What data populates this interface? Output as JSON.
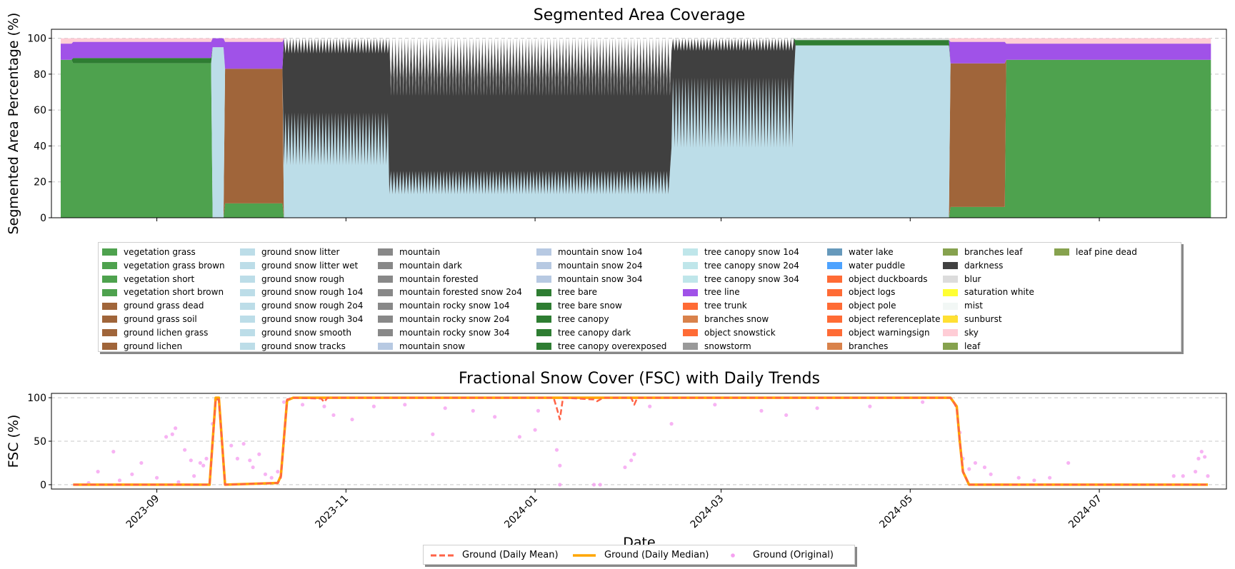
{
  "chart_data": [
    {
      "type": "area",
      "title": "Segmented Area Coverage",
      "xlabel": "",
      "ylabel": "Segmented Area Percentage (%)",
      "ylim": [
        0,
        105
      ],
      "yticks": [
        "0",
        "20",
        "40",
        "60",
        "80",
        "100"
      ],
      "grid": "y dashed",
      "x_range": [
        "2023-08-01",
        "2024-08-06"
      ],
      "stacking_order_bottom_to_top": [
        "vegetation grass",
        "ground grass dead",
        "ground snow litter",
        "darkness",
        "mountain",
        "tree canopy",
        "tree line",
        "blur",
        "sky"
      ],
      "phases": [
        {
          "from": "2023-08-05",
          "to": "2023-09-19",
          "dominant": "vegetation grass",
          "composition": {
            "vegetation grass": 86,
            "tree canopy": 3,
            "tree line": 9,
            "sky": 2
          }
        },
        {
          "from": "2023-09-19",
          "to": "2023-09-23",
          "dominant": "ground snow litter",
          "composition": {
            "ground snow litter": 95,
            "tree line": 5
          }
        },
        {
          "from": "2023-09-23",
          "to": "2023-10-12",
          "dominant": "ground grass dead",
          "composition": {
            "ground grass dead": 75,
            "vegetation grass": 8,
            "tree line": 15,
            "sky": 2
          }
        },
        {
          "from": "2023-10-12",
          "to": "2023-11-15",
          "dominant": "ground snow litter",
          "composition": {
            "ground snow litter": 45,
            "darkness": 55
          }
        },
        {
          "from": "2023-11-15",
          "to": "2024-02-14",
          "dominant": "darkness",
          "composition": {
            "darkness": 70,
            "ground snow litter": 20,
            "mountain": 10
          }
        },
        {
          "from": "2024-02-14",
          "to": "2024-03-25",
          "dominant": "ground snow litter",
          "composition": {
            "ground snow litter": 60,
            "darkness": 40
          }
        },
        {
          "from": "2024-03-25",
          "to": "2024-05-14",
          "dominant": "ground snow litter",
          "composition": {
            "ground snow litter": 96,
            "tree canopy": 3,
            "blur": 1
          }
        },
        {
          "from": "2024-05-14",
          "to": "2024-06-01",
          "dominant": "ground grass dead",
          "composition": {
            "ground grass dead": 80,
            "tree line": 12,
            "vegetation grass": 6,
            "sky": 2
          }
        },
        {
          "from": "2024-06-01",
          "to": "2024-08-06",
          "dominant": "vegetation grass",
          "composition": {
            "vegetation grass": 88,
            "tree line": 9,
            "sky": 3
          }
        }
      ],
      "legend": [
        {
          "label": "vegetation grass",
          "color": "#4ea24e"
        },
        {
          "label": "vegetation grass brown",
          "color": "#4ea24e"
        },
        {
          "label": "vegetation short",
          "color": "#4ea24e"
        },
        {
          "label": "vegetation short brown",
          "color": "#4ea24e"
        },
        {
          "label": "ground grass dead",
          "color": "#a0653a"
        },
        {
          "label": "ground grass soil",
          "color": "#a0653a"
        },
        {
          "label": "ground lichen grass",
          "color": "#a0653a"
        },
        {
          "label": "ground lichen",
          "color": "#a0653a"
        },
        {
          "label": "ground snow litter",
          "color": "#bcdde8"
        },
        {
          "label": "ground snow litter wet",
          "color": "#bcdde8"
        },
        {
          "label": "ground snow rough",
          "color": "#bcdde8"
        },
        {
          "label": "ground snow rough 1o4",
          "color": "#bcdde8"
        },
        {
          "label": "ground snow rough 2o4",
          "color": "#bcdde8"
        },
        {
          "label": "ground snow rough 3o4",
          "color": "#bcdde8"
        },
        {
          "label": "ground snow smooth",
          "color": "#bcdde8"
        },
        {
          "label": "ground snow tracks",
          "color": "#bcdde8"
        },
        {
          "label": "mountain",
          "color": "#888888"
        },
        {
          "label": "mountain dark",
          "color": "#888888"
        },
        {
          "label": "mountain forested",
          "color": "#888888"
        },
        {
          "label": "mountain forested snow 2o4",
          "color": "#888888"
        },
        {
          "label": "mountain rocky snow 1o4",
          "color": "#888888"
        },
        {
          "label": "mountain rocky snow 2o4",
          "color": "#888888"
        },
        {
          "label": "mountain rocky snow 3o4",
          "color": "#888888"
        },
        {
          "label": "mountain snow",
          "color": "#b7c9e2"
        },
        {
          "label": "mountain snow 1o4",
          "color": "#b7c9e2"
        },
        {
          "label": "mountain snow 2o4",
          "color": "#b7c9e2"
        },
        {
          "label": "mountain snow 3o4",
          "color": "#b7c9e2"
        },
        {
          "label": "tree bare",
          "color": "#2e7d32"
        },
        {
          "label": "tree bare snow",
          "color": "#2e7d32"
        },
        {
          "label": "tree canopy",
          "color": "#2e7d32"
        },
        {
          "label": "tree canopy dark",
          "color": "#2e7d32"
        },
        {
          "label": "tree canopy overexposed",
          "color": "#2e7d32"
        },
        {
          "label": "tree canopy snow 1o4",
          "color": "#bfe6ea"
        },
        {
          "label": "tree canopy snow 2o4",
          "color": "#bfe6ea"
        },
        {
          "label": "tree canopy snow 3o4",
          "color": "#bfe6ea"
        },
        {
          "label": "tree line",
          "color": "#a052e8"
        },
        {
          "label": "tree trunk",
          "color": "#ff6b35"
        },
        {
          "label": "branches snow",
          "color": "#d9824b"
        },
        {
          "label": "object snowstick",
          "color": "#ff6b35"
        },
        {
          "label": "snowstorm",
          "color": "#999999"
        },
        {
          "label": "water lake",
          "color": "#6699bb"
        },
        {
          "label": "water puddle",
          "color": "#4da3ff"
        },
        {
          "label": "object duckboards",
          "color": "#ff6b35"
        },
        {
          "label": "object logs",
          "color": "#ff6b35"
        },
        {
          "label": "object pole",
          "color": "#ff6b35"
        },
        {
          "label": "object referenceplate red",
          "color": "#ff6b35"
        },
        {
          "label": "object warningsign",
          "color": "#ff6b35"
        },
        {
          "label": "branches",
          "color": "#d9824b"
        },
        {
          "label": "branches leaf",
          "color": "#86a24e"
        },
        {
          "label": "darkness",
          "color": "#404040"
        },
        {
          "label": "blur",
          "color": "#dcdcdc"
        },
        {
          "label": "saturation white",
          "color": "#ffff33"
        },
        {
          "label": "mist",
          "color": "#f2f7f5"
        },
        {
          "label": "sunburst",
          "color": "#ffe033"
        },
        {
          "label": "sky",
          "color": "#ffcdd6"
        },
        {
          "label": "leaf",
          "color": "#86a24e"
        },
        {
          "label": "leaf pine dead",
          "color": "#86a24e"
        }
      ]
    },
    {
      "type": "line",
      "title": "Fractional Snow Cover (FSC) with Daily Trends",
      "xlabel": "Date",
      "ylabel": "FSC (%)",
      "ylim": [
        -5,
        105
      ],
      "yticks": [
        "0",
        "50",
        "100"
      ],
      "xlim": [
        "2023-07-29",
        "2024-08-11"
      ],
      "xticks": [
        "2023-09",
        "2023-11",
        "2024-01",
        "2024-03",
        "2024-05",
        "2024-07"
      ],
      "grid": "y dashed",
      "legend_placement": "bottom-center",
      "series": [
        {
          "name": "Ground (Daily Mean)",
          "style": "dashed",
          "color": "#ff6347",
          "points": [
            [
              "2023-08-05",
              0
            ],
            [
              "2023-09-18",
              0
            ],
            [
              "2023-09-20",
              98
            ],
            [
              "2023-09-21",
              98
            ],
            [
              "2023-09-23",
              0
            ],
            [
              "2023-10-10",
              2
            ],
            [
              "2023-10-11",
              8
            ],
            [
              "2023-10-13",
              98
            ],
            [
              "2023-10-15",
              100
            ],
            [
              "2023-10-24",
              99
            ],
            [
              "2023-10-25",
              95
            ],
            [
              "2023-10-26",
              100
            ],
            [
              "2024-01-07",
              100
            ],
            [
              "2024-01-08",
              88
            ],
            [
              "2024-01-09",
              75
            ],
            [
              "2024-01-10",
              100
            ],
            [
              "2024-01-20",
              98
            ],
            [
              "2024-01-21",
              96
            ],
            [
              "2024-01-23",
              100
            ],
            [
              "2024-02-01",
              100
            ],
            [
              "2024-02-02",
              92
            ],
            [
              "2024-02-03",
              100
            ],
            [
              "2024-05-14",
              100
            ],
            [
              "2024-05-15",
              95
            ],
            [
              "2024-05-16",
              88
            ],
            [
              "2024-05-17",
              50
            ],
            [
              "2024-05-18",
              15
            ],
            [
              "2024-05-20",
              0
            ],
            [
              "2024-08-05",
              0
            ]
          ]
        },
        {
          "name": "Ground (Daily Median)",
          "style": "solid",
          "color": "#ffa500",
          "points": [
            [
              "2023-08-05",
              0
            ],
            [
              "2023-09-18",
              0
            ],
            [
              "2023-09-20",
              100
            ],
            [
              "2023-09-21",
              100
            ],
            [
              "2023-09-23",
              0
            ],
            [
              "2023-10-10",
              2
            ],
            [
              "2023-10-11",
              10
            ],
            [
              "2023-10-13",
              97
            ],
            [
              "2023-10-15",
              100
            ],
            [
              "2024-05-14",
              100
            ],
            [
              "2024-05-16",
              90
            ],
            [
              "2024-05-17",
              50
            ],
            [
              "2024-05-18",
              15
            ],
            [
              "2024-05-20",
              0
            ],
            [
              "2024-08-05",
              0
            ]
          ]
        },
        {
          "name": "Ground (Original)",
          "style": "scatter",
          "color": "#f5a0f0",
          "points": [
            [
              "2023-08-10",
              2
            ],
            [
              "2023-08-13",
              15
            ],
            [
              "2023-08-18",
              38
            ],
            [
              "2023-08-20",
              5
            ],
            [
              "2023-08-24",
              12
            ],
            [
              "2023-08-27",
              25
            ],
            [
              "2023-09-01",
              8
            ],
            [
              "2023-09-04",
              55
            ],
            [
              "2023-09-06",
              58
            ],
            [
              "2023-09-07",
              65
            ],
            [
              "2023-09-08",
              3
            ],
            [
              "2023-09-10",
              40
            ],
            [
              "2023-09-12",
              28
            ],
            [
              "2023-09-13",
              10
            ],
            [
              "2023-09-15",
              25
            ],
            [
              "2023-09-16",
              22
            ],
            [
              "2023-09-17",
              30
            ],
            [
              "2023-09-19",
              70
            ],
            [
              "2023-09-20",
              98
            ],
            [
              "2023-09-25",
              45
            ],
            [
              "2023-09-27",
              30
            ],
            [
              "2023-09-29",
              47
            ],
            [
              "2023-10-01",
              28
            ],
            [
              "2023-10-02",
              20
            ],
            [
              "2023-10-04",
              35
            ],
            [
              "2023-10-06",
              12
            ],
            [
              "2023-10-08",
              8
            ],
            [
              "2023-10-10",
              15
            ],
            [
              "2023-10-12",
              95
            ],
            [
              "2023-10-18",
              92
            ],
            [
              "2023-10-25",
              90
            ],
            [
              "2023-10-28",
              80
            ],
            [
              "2023-11-03",
              75
            ],
            [
              "2023-11-10",
              90
            ],
            [
              "2023-11-20",
              92
            ],
            [
              "2023-11-29",
              58
            ],
            [
              "2023-12-03",
              88
            ],
            [
              "2023-12-12",
              85
            ],
            [
              "2023-12-19",
              78
            ],
            [
              "2023-12-27",
              55
            ],
            [
              "2024-01-01",
              63
            ],
            [
              "2024-01-02",
              85
            ],
            [
              "2024-01-08",
              40
            ],
            [
              "2024-01-09",
              22
            ],
            [
              "2024-01-09",
              0
            ],
            [
              "2024-01-20",
              0
            ],
            [
              "2024-01-22",
              0
            ],
            [
              "2024-01-30",
              20
            ],
            [
              "2024-02-01",
              28
            ],
            [
              "2024-02-02",
              35
            ],
            [
              "2024-02-07",
              90
            ],
            [
              "2024-02-14",
              70
            ],
            [
              "2024-02-28",
              92
            ],
            [
              "2024-03-14",
              85
            ],
            [
              "2024-03-22",
              80
            ],
            [
              "2024-04-01",
              88
            ],
            [
              "2024-04-18",
              90
            ],
            [
              "2024-05-05",
              95
            ],
            [
              "2024-05-17",
              60
            ],
            [
              "2024-05-18",
              30
            ],
            [
              "2024-05-20",
              18
            ],
            [
              "2024-05-22",
              25
            ],
            [
              "2024-05-25",
              20
            ],
            [
              "2024-05-27",
              12
            ],
            [
              "2024-06-05",
              8
            ],
            [
              "2024-06-10",
              5
            ],
            [
              "2024-06-15",
              8
            ],
            [
              "2024-06-21",
              25
            ],
            [
              "2024-07-25",
              10
            ],
            [
              "2024-07-28",
              10
            ],
            [
              "2024-08-01",
              15
            ],
            [
              "2024-08-02",
              30
            ],
            [
              "2024-08-03",
              38
            ],
            [
              "2024-08-04",
              32
            ],
            [
              "2024-08-05",
              10
            ]
          ]
        }
      ]
    }
  ]
}
